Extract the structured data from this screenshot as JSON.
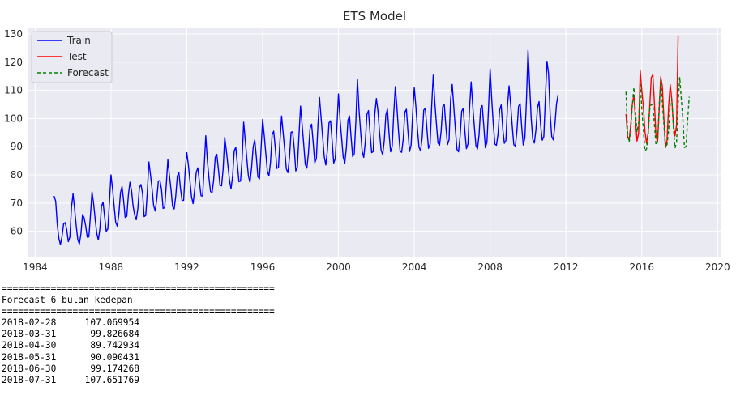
{
  "chart_data": {
    "type": "line",
    "title": "ETS Model",
    "xlabel": "",
    "ylabel": "",
    "xlim": [
      1983.6,
      2020.2
    ],
    "ylim": [
      51,
      132
    ],
    "x_ticks": [
      1984,
      1988,
      1992,
      1996,
      2000,
      2004,
      2008,
      2012,
      2016,
      2020
    ],
    "y_ticks": [
      60,
      70,
      80,
      90,
      100,
      110,
      120,
      130
    ],
    "grid": true,
    "legend_position": "top-left",
    "series": [
      {
        "name": "Train",
        "color": "#0000ff",
        "style": "solid",
        "start_year": 1985.0,
        "step_years": 0.08333,
        "values": [
          72.5,
          70.7,
          62.5,
          57.5,
          55.3,
          58.1,
          62.6,
          63.1,
          60.6,
          56.3,
          58.0,
          68.5,
          73.3,
          67.8,
          62.0,
          57.0,
          55.5,
          59.2,
          65.9,
          64.8,
          61.9,
          57.9,
          58.0,
          65.6,
          74.0,
          69.9,
          64.2,
          59.3,
          56.9,
          61.0,
          68.9,
          70.3,
          65.0,
          60.0,
          60.8,
          70.1,
          80.0,
          75.1,
          68.9,
          63.1,
          61.8,
          66.2,
          73.6,
          75.9,
          70.9,
          64.9,
          65.3,
          72.7,
          77.4,
          74.5,
          69.0,
          65.8,
          64.1,
          68.0,
          75.5,
          76.6,
          73.4,
          65.2,
          65.6,
          73.9,
          84.6,
          80.1,
          75.1,
          69.1,
          67.2,
          71.6,
          77.8,
          78.0,
          74.8,
          68.1,
          68.4,
          76.5,
          85.4,
          79.7,
          74.9,
          68.8,
          67.9,
          72.5,
          79.6,
          80.8,
          75.2,
          70.9,
          71.0,
          81.6,
          87.9,
          83.6,
          77.7,
          72.2,
          69.8,
          74.9,
          81.0,
          82.5,
          77.4,
          72.6,
          72.5,
          82.8,
          93.9,
          85.3,
          79.1,
          74.1,
          73.7,
          78.2,
          86.2,
          87.3,
          82.1,
          76.3,
          76.1,
          82.0,
          93.3,
          88.8,
          83.6,
          78.2,
          75.0,
          79.6,
          88.5,
          89.8,
          83.8,
          77.6,
          77.8,
          85.4,
          98.7,
          92.3,
          85.7,
          79.6,
          77.4,
          82.5,
          89.8,
          92.4,
          86.5,
          79.3,
          78.6,
          89.2,
          99.7,
          94.1,
          87.7,
          81.2,
          79.7,
          84.6,
          94.2,
          95.5,
          89.6,
          82.3,
          82.6,
          92.2,
          100.9,
          94.9,
          88.6,
          82.1,
          80.8,
          86.2,
          95.1,
          95.3,
          89.5,
          81.4,
          82.9,
          94.0,
          104.4,
          97.8,
          90.9,
          83.7,
          82.4,
          87.7,
          96.4,
          98.0,
          91.4,
          84.3,
          85.8,
          97.5,
          107.5,
          100.3,
          93.3,
          86.4,
          83.5,
          88.8,
          98.5,
          99.2,
          92.1,
          84.2,
          85.8,
          97.0,
          108.7,
          99.7,
          93.1,
          86.3,
          84.2,
          89.6,
          99.4,
          100.9,
          93.3,
          86.5,
          87.5,
          98.9,
          113.9,
          103.2,
          95.6,
          88.3,
          86.2,
          91.7,
          101.4,
          102.8,
          94.8,
          87.9,
          88.3,
          101.6,
          107.1,
          102.7,
          95.1,
          88.8,
          87.1,
          92.2,
          101.3,
          103.3,
          94.9,
          88.2,
          90.0,
          101.8,
          111.3,
          104.1,
          95.7,
          88.5,
          88.0,
          92.6,
          102.2,
          103.3,
          95.4,
          88.3,
          90.6,
          102.2,
          110.9,
          104.3,
          96.2,
          89.8,
          88.5,
          93.3,
          103.0,
          103.6,
          96.3,
          89.4,
          90.9,
          104.4,
          115.4,
          105.7,
          98.2,
          91.3,
          90.5,
          95.6,
          104.2,
          104.9,
          97.2,
          90.7,
          92.4,
          106.8,
          112.1,
          104.2,
          96.3,
          89.1,
          88.2,
          93.6,
          102.6,
          103.6,
          95.6,
          89.3,
          91.0,
          103.9,
          113.0,
          104.4,
          97.2,
          90.4,
          89.2,
          94.2,
          103.6,
          104.6,
          97.3,
          89.6,
          91.6,
          103.7,
          117.6,
          107.1,
          98.1,
          90.9,
          90.5,
          94.4,
          103.0,
          104.8,
          96.4,
          91.2,
          92.2,
          104.5,
          111.6,
          105.0,
          97.4,
          90.7,
          90.2,
          95.9,
          104.3,
          105.3,
          97.0,
          90.6,
          93.1,
          106.4,
          124.2,
          112.2,
          100.1,
          92.6,
          91.3,
          96.0,
          103.9,
          106.0,
          97.5,
          92.3,
          93.6,
          107.6,
          120.3,
          115.9,
          101.6,
          93.6,
          92.4,
          97.7,
          105.0,
          108.4
        ]
      },
      {
        "name": "Test",
        "color": "#ff0000",
        "style": "solid",
        "start_year": 2015.1667,
        "step_years": 0.08333,
        "values": [
          101.6,
          93.6,
          92.4,
          97.7,
          105.0,
          108.4,
          99.4,
          92.0,
          94.9,
          117.1,
          110.0,
          104.3,
          95.5,
          91.2,
          94.9,
          104.2,
          114.5,
          115.6,
          105.3,
          93.7,
          91.6,
          103.1,
          114.8,
          111.4,
          99.9,
          89.7,
          92.4,
          104.5,
          112.0,
          106.7,
          98.1,
          93.8,
          97.6,
          129.5
        ]
      },
      {
        "name": "Forecast",
        "color": "#008000",
        "style": "dashed",
        "start_year": 2015.1667,
        "step_years": 0.08333,
        "values": [
          109.5,
          95.1,
          91.5,
          96.3,
          104.7,
          111.0,
          102.1,
          95.2,
          98.4,
          112.2,
          103.6,
          96.0,
          88.5,
          89.2,
          94.0,
          103.3,
          105.1,
          104.8,
          97.8,
          90.5,
          91.9,
          104.6,
          113.9,
          105.5,
          97.9,
          89.6,
          90.8,
          95.8,
          105.3,
          106.9,
          96.9,
          89.5,
          91.6,
          105.2,
          114.7,
          107.1,
          99.8,
          89.7,
          90.1,
          99.2,
          107.7
        ]
      }
    ]
  },
  "output": {
    "separator": "==================================================",
    "heading": "Forecast 6 bulan kedepan",
    "rows": [
      {
        "date": "2018-02-28",
        "value": "107.069954"
      },
      {
        "date": "2018-03-31",
        "value": "99.826684"
      },
      {
        "date": "2018-04-30",
        "value": "89.742934"
      },
      {
        "date": "2018-05-31",
        "value": "90.090431"
      },
      {
        "date": "2018-06-30",
        "value": "99.174268"
      },
      {
        "date": "2018-07-31",
        "value": "107.651769"
      }
    ]
  }
}
